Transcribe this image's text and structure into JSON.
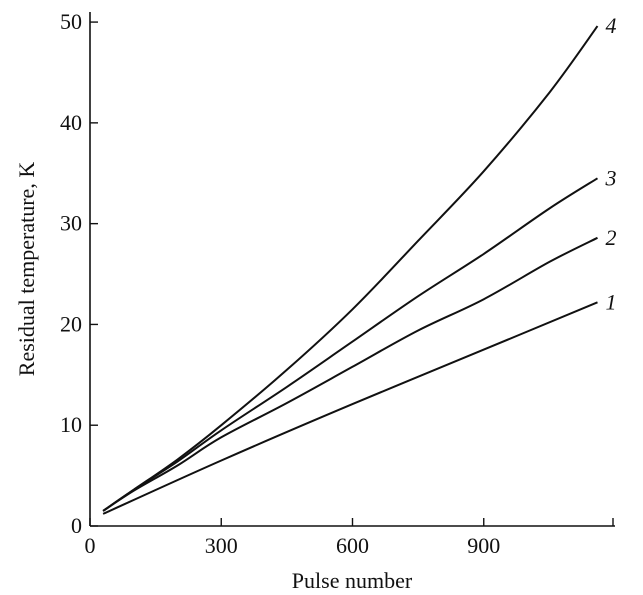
{
  "chart_data": {
    "type": "line",
    "title": "",
    "xlabel": "Pulse number",
    "ylabel": "Residual temperature, K",
    "xlim": [
      0,
      1200
    ],
    "ylim": [
      0,
      51
    ],
    "x_ticks": [
      0,
      300,
      600,
      900
    ],
    "x_tick_labels": [
      "0",
      "300",
      "600",
      "900"
    ],
    "y_ticks": [
      0,
      10,
      20,
      30,
      40,
      50
    ],
    "y_tick_labels": [
      "0",
      "10",
      "20",
      "30",
      "40",
      "50"
    ],
    "grid": false,
    "legend": "labels at line ends",
    "series": [
      {
        "name": "1",
        "x": [
          30,
          300,
          600,
          900,
          1160
        ],
        "y": [
          1.2,
          6.5,
          12.1,
          17.5,
          22.2
        ]
      },
      {
        "name": "2",
        "x": [
          30,
          100,
          200,
          300,
          450,
          600,
          750,
          900,
          1050,
          1160
        ],
        "y": [
          1.5,
          3.5,
          6.0,
          8.8,
          12.2,
          15.8,
          19.4,
          22.5,
          26.2,
          28.6
        ]
      },
      {
        "name": "3",
        "x": [
          30,
          100,
          200,
          300,
          450,
          600,
          750,
          900,
          1050,
          1160
        ],
        "y": [
          1.5,
          3.6,
          6.4,
          9.5,
          13.8,
          18.3,
          22.8,
          27.0,
          31.5,
          34.5
        ]
      },
      {
        "name": "4",
        "x": [
          30,
          100,
          200,
          300,
          450,
          600,
          750,
          900,
          1050,
          1160
        ],
        "y": [
          1.5,
          3.6,
          6.6,
          10.0,
          15.5,
          21.5,
          28.3,
          35.2,
          43.0,
          49.6
        ]
      }
    ]
  }
}
